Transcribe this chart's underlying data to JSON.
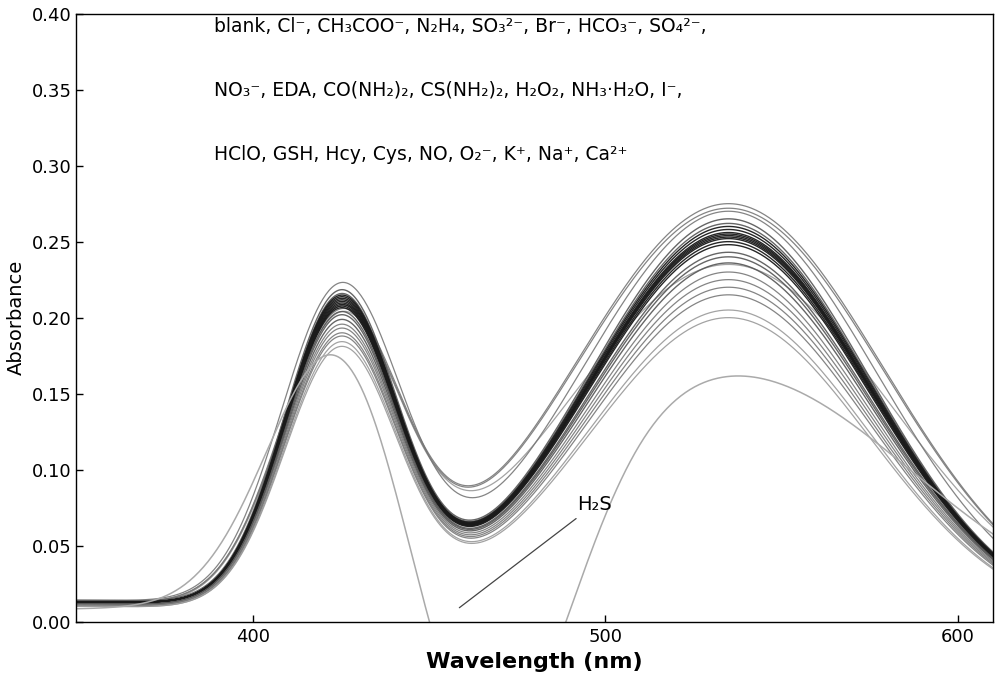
{
  "title": "",
  "xlabel": "Wavelength (nm)",
  "ylabel": "Absorbance",
  "xlim": [
    350,
    610
  ],
  "ylim": [
    0.0,
    0.4
  ],
  "yticks": [
    0.0,
    0.05,
    0.1,
    0.15,
    0.2,
    0.25,
    0.3,
    0.35,
    0.4
  ],
  "xticks": [
    400,
    500,
    600
  ],
  "legend_text_line1": "blank, Cl⁻, CH₃COO⁻, N₂H₄, SO₃²⁻, Br⁻, HCO₃⁻, SO₄²⁻,",
  "legend_text_line2": "NO₃⁻, EDA, CO(NH₂)₂, CS(NH₂)₂, H₂O₂, NH₃·H₂O, I⁻,",
  "legend_text_line3": "HClO, GSH, Hcy, Cys, NO, O₂⁻, K⁺, Na⁺, Ca²⁺",
  "h2s_label": "H₂S",
  "background_color": "#ffffff",
  "xlabel_fontsize": 16,
  "ylabel_fontsize": 14,
  "tick_fontsize": 13,
  "legend_fontsize": 13.5
}
